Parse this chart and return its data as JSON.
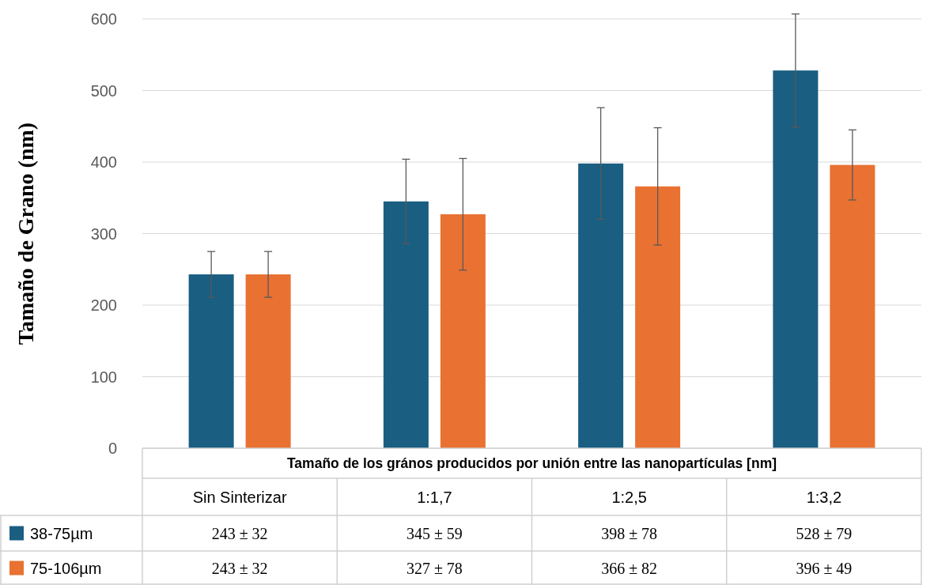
{
  "chart_data": {
    "type": "bar",
    "ylabel": "Tamaño de Grano (nm)",
    "xlabel": "Tamaño de los grános producidos por unión entre las nanopartículas  [nm]",
    "categories": [
      "Sin Sinterizar",
      "1:1,7",
      "1:2,5",
      "1:3,2"
    ],
    "series": [
      {
        "name": "38-75µm",
        "color": "#1a5e82",
        "values": [
          243,
          345,
          398,
          528
        ],
        "errors": [
          32,
          59,
          78,
          79
        ],
        "value_labels": [
          "243 ± 32",
          "345 ± 59",
          "398 ± 78",
          "528 ± 79"
        ]
      },
      {
        "name": "75-106µm",
        "color": "#e97132",
        "values": [
          243,
          327,
          366,
          396
        ],
        "errors": [
          32,
          78,
          82,
          49
        ],
        "value_labels": [
          "243 ± 32",
          "327 ± 78",
          "366 ± 82",
          "396 ± 49"
        ]
      }
    ],
    "ylim": [
      0,
      600
    ],
    "yticks": [
      0,
      100,
      200,
      300,
      400,
      500,
      600
    ],
    "grid": "y",
    "legend": "bottom left"
  }
}
